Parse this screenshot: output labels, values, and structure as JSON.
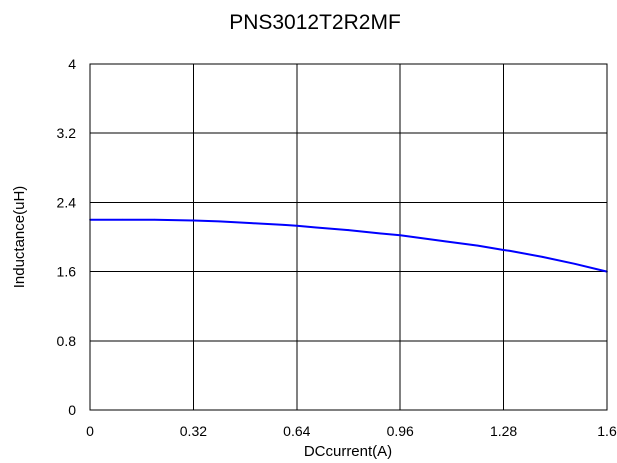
{
  "chart_data": {
    "type": "line",
    "title": "PNS3012T2R2MF",
    "xlabel": "DCcurrent(A)",
    "ylabel": "Inductance(uH)",
    "xlim": [
      0,
      1.6
    ],
    "ylim": [
      0,
      4
    ],
    "x_ticks": [
      "0",
      "0.32",
      "0.64",
      "0.96",
      "1.28",
      "1.6"
    ],
    "y_ticks": [
      "0",
      "0.8",
      "1.6",
      "2.4",
      "3.2",
      "4"
    ],
    "grid": true,
    "legend": "none",
    "series": [
      {
        "color": "#0000ff",
        "x": [
          0,
          0.1,
          0.2,
          0.32,
          0.4,
          0.5,
          0.6,
          0.64,
          0.7,
          0.8,
          0.9,
          0.96,
          1.0,
          1.1,
          1.2,
          1.28,
          1.3,
          1.4,
          1.5,
          1.6
        ],
        "y": [
          2.2,
          2.2,
          2.2,
          2.19,
          2.18,
          2.16,
          2.14,
          2.13,
          2.11,
          2.08,
          2.04,
          2.02,
          2.0,
          1.95,
          1.9,
          1.85,
          1.84,
          1.77,
          1.69,
          1.6
        ]
      }
    ]
  }
}
